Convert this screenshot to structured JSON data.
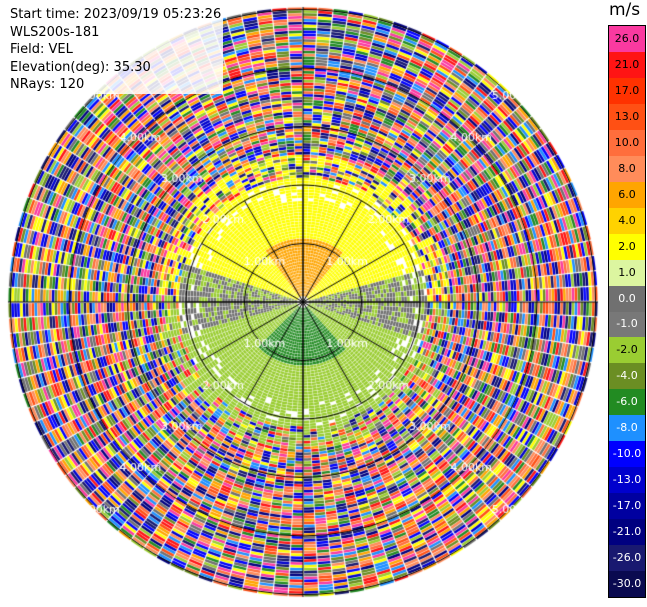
{
  "info": {
    "start_time": "Start time: 2023/09/19 05:23:26",
    "instrument": "WLS200s-181",
    "field": "Field: VEL",
    "elevation": "Elevation(deg): 35.30",
    "nrays": "NRays: 120"
  },
  "range_ring_labels": [
    "1.00km",
    "2.00km",
    "3.00km",
    "4.00km",
    "5.00km"
  ],
  "colorbar": {
    "unit": "m/s",
    "ticks": [
      "26.0",
      "21.0",
      "17.0",
      "13.0",
      "10.0",
      "8.0",
      "6.0",
      "4.0",
      "2.0",
      "1.0",
      "0.0",
      "-1.0",
      "-2.0",
      "-4.0",
      "-6.0",
      "-8.0",
      "-10.0",
      "-13.0",
      "-17.0",
      "-21.0",
      "-26.0",
      "-30.0"
    ],
    "colors": [
      "#fa3aa0",
      "#ff1414",
      "#ff3200",
      "#ff5014",
      "#ff6e3c",
      "#ff8c5a",
      "#ffa500",
      "#ffd200",
      "#ffff00",
      "#dcf5a0",
      "#707070",
      "#787878",
      "#9acd32",
      "#6b8e23",
      "#228b22",
      "#1e90ff",
      "#0000ff",
      "#0000cd",
      "#0000a0",
      "#000080",
      "#191970",
      "#0a0a50"
    ]
  }
}
